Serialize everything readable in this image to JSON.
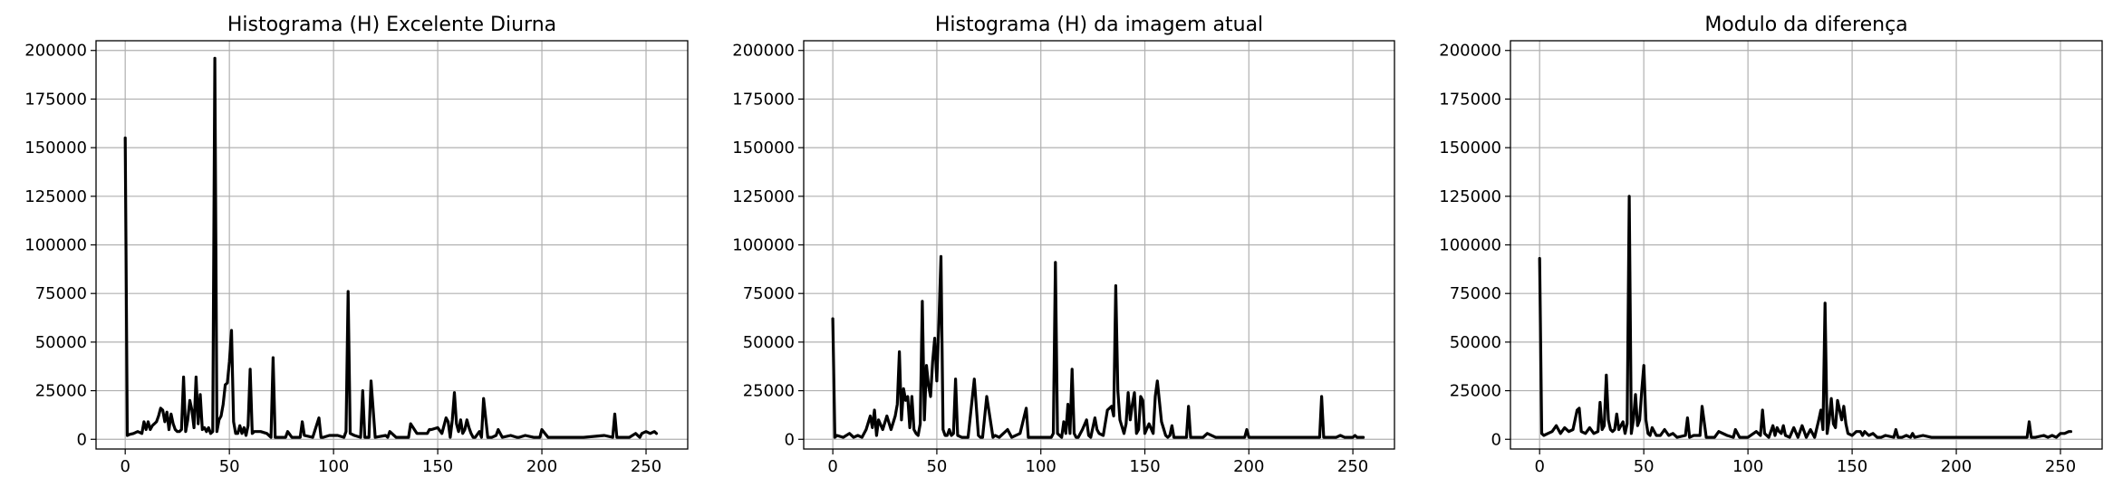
{
  "chart_data": [
    {
      "type": "line",
      "title": "Histograma (H) Excelente Diurna",
      "xlabel": "",
      "ylabel": "",
      "xlim": [
        -14,
        270
      ],
      "ylim": [
        -5000,
        205000
      ],
      "xticks": [
        0,
        50,
        100,
        150,
        200,
        250
      ],
      "yticks": [
        0,
        25000,
        50000,
        75000,
        100000,
        125000,
        150000,
        175000,
        200000
      ],
      "grid": true,
      "series": [
        {
          "color": "#000000",
          "x": [
            0,
            1,
            2,
            4,
            6,
            8,
            9,
            10,
            11,
            12,
            13,
            14,
            15,
            16,
            17,
            18,
            19,
            20,
            21,
            22,
            23,
            24,
            25,
            26,
            27,
            28,
            29,
            30,
            31,
            32,
            33,
            34,
            35,
            36,
            37,
            38,
            39,
            40,
            41,
            42,
            43,
            44,
            45,
            46,
            47,
            48,
            49,
            50,
            51,
            52,
            53,
            54,
            55,
            56,
            57,
            58,
            59,
            60,
            61,
            62,
            65,
            68,
            70,
            71,
            72,
            74,
            77,
            78,
            80,
            84,
            85,
            86,
            90,
            93,
            94,
            95,
            98,
            102,
            105,
            106,
            107,
            108,
            110,
            113,
            114,
            115,
            117,
            118,
            120,
            125,
            126,
            127,
            130,
            135,
            136,
            137,
            140,
            145,
            146,
            147,
            150,
            152,
            154,
            155,
            156,
            157,
            158,
            159,
            160,
            161,
            162,
            163,
            164,
            165,
            166,
            167,
            168,
            170,
            171,
            172,
            174,
            176,
            178,
            179,
            181,
            185,
            188,
            189,
            192,
            196,
            199,
            200,
            203,
            210,
            220,
            230,
            234,
            235,
            236,
            238,
            242,
            245,
            247,
            248,
            250,
            252,
            254,
            255
          ],
          "y": [
            155000,
            2000,
            2500,
            3000,
            4000,
            3000,
            9000,
            5000,
            9000,
            5000,
            7000,
            8000,
            9000,
            12000,
            16000,
            15000,
            9000,
            14000,
            5000,
            13000,
            8000,
            5000,
            4000,
            4000,
            5000,
            32000,
            4000,
            10000,
            20000,
            15000,
            6000,
            32000,
            8000,
            23000,
            5000,
            6000,
            4000,
            6000,
            3000,
            4000,
            196000,
            4000,
            10000,
            12000,
            18000,
            28000,
            29000,
            40000,
            56000,
            9000,
            3000,
            3000,
            7000,
            3000,
            6000,
            2000,
            7000,
            36000,
            3000,
            4000,
            4000,
            3000,
            1000,
            42000,
            1000,
            1000,
            1000,
            4000,
            1000,
            1000,
            9000,
            2000,
            1000,
            11000,
            1000,
            1000,
            2000,
            2000,
            1000,
            4000,
            76000,
            3000,
            2000,
            1000,
            25000,
            1000,
            1000,
            30000,
            1000,
            2000,
            1000,
            4000,
            1000,
            1000,
            1000,
            8000,
            3000,
            3000,
            5000,
            5000,
            6000,
            3000,
            11000,
            9000,
            1000,
            10000,
            24000,
            8000,
            4000,
            10000,
            3000,
            5000,
            10000,
            6000,
            3000,
            1000,
            1000,
            4000,
            1000,
            21000,
            1000,
            1000,
            2000,
            5000,
            1000,
            2000,
            1000,
            1000,
            2000,
            1000,
            1000,
            5000,
            1000,
            1000,
            1000,
            2000,
            1000,
            13000,
            1000,
            1000,
            1000,
            3000,
            1000,
            3000,
            4000,
            3000,
            4000,
            3000
          ]
        }
      ]
    },
    {
      "type": "line",
      "title": "Histograma (H) da imagem atual",
      "xlabel": "",
      "ylabel": "",
      "xlim": [
        -14,
        270
      ],
      "ylim": [
        -5000,
        205000
      ],
      "xticks": [
        0,
        50,
        100,
        150,
        200,
        250
      ],
      "yticks": [
        0,
        25000,
        50000,
        75000,
        100000,
        125000,
        150000,
        175000,
        200000
      ],
      "grid": true,
      "series": [
        {
          "color": "#000000",
          "x": [
            0,
            1,
            2,
            5,
            8,
            10,
            12,
            14,
            16,
            18,
            19,
            20,
            21,
            22,
            24,
            26,
            28,
            30,
            31,
            32,
            33,
            34,
            35,
            36,
            37,
            38,
            39,
            40,
            41,
            42,
            43,
            44,
            45,
            46,
            47,
            48,
            49,
            50,
            51,
            52,
            53,
            54,
            55,
            56,
            57,
            58,
            59,
            60,
            62,
            65,
            68,
            70,
            71,
            72,
            74,
            77,
            78,
            80,
            84,
            86,
            90,
            93,
            94,
            96,
            100,
            105,
            106,
            107,
            108,
            110,
            111,
            112,
            113,
            114,
            115,
            116,
            117,
            118,
            120,
            122,
            123,
            124,
            126,
            127,
            128,
            130,
            132,
            134,
            135,
            136,
            137,
            138,
            140,
            141,
            142,
            143,
            144,
            145,
            146,
            147,
            148,
            149,
            150,
            152,
            154,
            155,
            156,
            158,
            160,
            161,
            162,
            163,
            164,
            166,
            168,
            170,
            171,
            172,
            174,
            176,
            178,
            180,
            184,
            190,
            194,
            198,
            199,
            200,
            205,
            210,
            220,
            230,
            233,
            234,
            235,
            236,
            238,
            242,
            244,
            246,
            248,
            250,
            251,
            252,
            254,
            255
          ],
          "y": [
            62000,
            1000,
            2000,
            1000,
            3000,
            1000,
            2000,
            1000,
            5000,
            12000,
            6000,
            15000,
            2000,
            10000,
            5000,
            12000,
            5000,
            12000,
            18000,
            45000,
            10000,
            26000,
            20000,
            22000,
            6000,
            22000,
            5000,
            3000,
            2000,
            8000,
            71000,
            10000,
            38000,
            28000,
            22000,
            40000,
            52000,
            30000,
            60000,
            94000,
            5000,
            2000,
            2000,
            5000,
            2000,
            3000,
            31000,
            2000,
            1000,
            1000,
            31000,
            2000,
            1000,
            1000,
            22000,
            1000,
            2000,
            1000,
            5000,
            1000,
            3000,
            16000,
            1000,
            1000,
            1000,
            1000,
            3000,
            91000,
            3000,
            1000,
            9000,
            3000,
            18000,
            3000,
            36000,
            3000,
            1000,
            1000,
            5000,
            10000,
            2000,
            1000,
            11000,
            5000,
            3000,
            2000,
            15000,
            17000,
            12000,
            79000,
            25000,
            10000,
            3000,
            8000,
            24000,
            10000,
            18000,
            24000,
            3000,
            5000,
            22000,
            20000,
            3000,
            8000,
            3000,
            22000,
            30000,
            9000,
            2000,
            1000,
            2000,
            7000,
            1000,
            1000,
            1000,
            1000,
            17000,
            1000,
            1000,
            1000,
            1000,
            3000,
            1000,
            1000,
            1000,
            1000,
            5000,
            1000,
            1000,
            1000,
            1000,
            1000,
            1000,
            1000,
            22000,
            1000,
            1000,
            1000,
            2000,
            1000,
            1000,
            1000,
            2000,
            1000,
            1000,
            1000
          ]
        }
      ]
    },
    {
      "type": "line",
      "title": "Modulo da diferença",
      "xlabel": "",
      "ylabel": "",
      "xlim": [
        -14,
        270
      ],
      "ylim": [
        -5000,
        205000
      ],
      "xticks": [
        0,
        50,
        100,
        150,
        200,
        250
      ],
      "yticks": [
        0,
        25000,
        50000,
        75000,
        100000,
        125000,
        150000,
        175000,
        200000
      ],
      "grid": true,
      "series": [
        {
          "color": "#000000",
          "x": [
            0,
            1,
            2,
            4,
            6,
            8,
            10,
            12,
            14,
            16,
            18,
            19,
            20,
            22,
            24,
            26,
            28,
            29,
            30,
            31,
            32,
            33,
            34,
            35,
            36,
            37,
            38,
            40,
            41,
            42,
            43,
            44,
            45,
            46,
            47,
            48,
            49,
            50,
            51,
            52,
            53,
            54,
            56,
            58,
            60,
            62,
            64,
            66,
            70,
            71,
            72,
            74,
            77,
            78,
            80,
            84,
            86,
            90,
            93,
            94,
            96,
            100,
            104,
            106,
            107,
            108,
            110,
            112,
            113,
            114,
            115,
            116,
            117,
            118,
            120,
            122,
            124,
            126,
            128,
            130,
            132,
            134,
            135,
            136,
            137,
            138,
            139,
            140,
            141,
            142,
            143,
            144,
            145,
            146,
            147,
            148,
            150,
            152,
            154,
            155,
            156,
            158,
            160,
            162,
            164,
            166,
            170,
            171,
            172,
            174,
            176,
            178,
            179,
            180,
            184,
            188,
            190,
            194,
            200,
            210,
            220,
            230,
            234,
            235,
            236,
            238,
            242,
            244,
            246,
            248,
            250,
            252,
            254,
            255
          ],
          "y": [
            93000,
            3000,
            2000,
            3000,
            4000,
            7000,
            3000,
            6000,
            4000,
            5000,
            15000,
            16000,
            4000,
            3000,
            6000,
            3000,
            4000,
            19000,
            5000,
            7000,
            33000,
            10000,
            5000,
            4000,
            5000,
            13000,
            5000,
            9000,
            3000,
            8000,
            125000,
            3000,
            10000,
            23000,
            7000,
            10000,
            25000,
            38000,
            10000,
            3000,
            2000,
            6000,
            2000,
            2000,
            5000,
            2000,
            3000,
            1000,
            2000,
            11000,
            1000,
            2000,
            2000,
            17000,
            1000,
            1000,
            4000,
            2000,
            1000,
            5000,
            1000,
            1000,
            4000,
            2000,
            15000,
            3000,
            1000,
            7000,
            2000,
            6000,
            4000,
            3000,
            7000,
            2000,
            1000,
            6000,
            1000,
            7000,
            1000,
            5000,
            1000,
            10000,
            15000,
            5000,
            70000,
            3000,
            10000,
            21000,
            8000,
            6000,
            20000,
            15000,
            10000,
            17000,
            8000,
            3000,
            2000,
            4000,
            4000,
            2000,
            4000,
            2000,
            3000,
            1000,
            1000,
            2000,
            1000,
            5000,
            1000,
            1000,
            2000,
            1000,
            3000,
            1000,
            2000,
            1000,
            1000,
            1000,
            1000,
            1000,
            1000,
            1000,
            1000,
            9000,
            1000,
            1000,
            2000,
            1000,
            2000,
            1000,
            3000,
            3000,
            4000,
            4000
          ]
        }
      ]
    }
  ]
}
